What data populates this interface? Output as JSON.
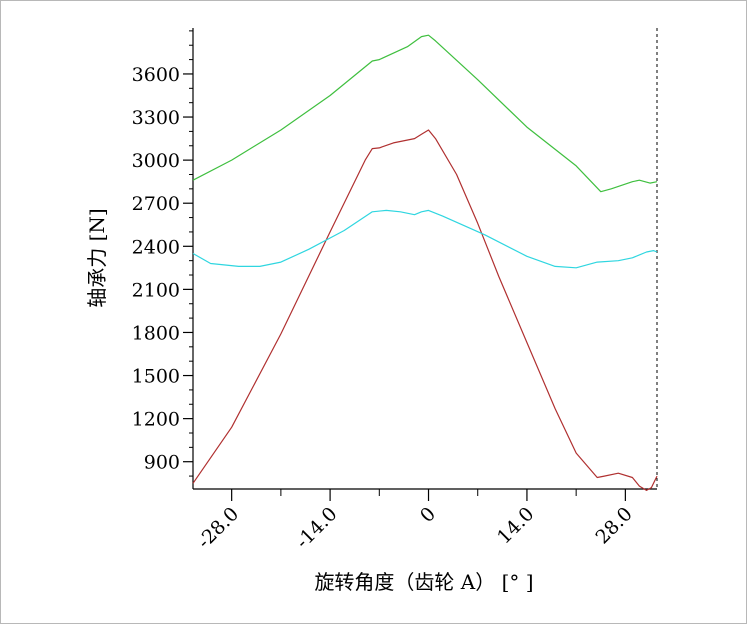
{
  "chart_data": {
    "type": "line",
    "title": "",
    "xlabel": "旋转角度（齿轮 A） [°  ]",
    "ylabel": "轴承力 [N]",
    "xlim": [
      -33.5,
      32.5
    ],
    "ylim": [
      710,
      3920
    ],
    "x_ticks": [
      -28.0,
      -14.0,
      0,
      14.0,
      28.0
    ],
    "x_tick_labels": [
      "-28.0",
      "-14.0",
      "0",
      "14.0",
      "28.0"
    ],
    "y_ticks": [
      900,
      1200,
      1500,
      1800,
      2100,
      2400,
      2700,
      3000,
      3300,
      3600
    ],
    "y_tick_labels": [
      "900",
      "1200",
      "1500",
      "1800",
      "2100",
      "2400",
      "2700",
      "3000",
      "3300",
      "3600"
    ],
    "grid": false,
    "legend": "none",
    "series": [
      {
        "color": "#3fbf3f",
        "points": [
          [
            -33.5,
            2860
          ],
          [
            -28,
            3000
          ],
          [
            -21,
            3210
          ],
          [
            -14,
            3450
          ],
          [
            -8,
            3690
          ],
          [
            -7,
            3700
          ],
          [
            -3,
            3790
          ],
          [
            -1,
            3860
          ],
          [
            0,
            3870
          ],
          [
            1,
            3830
          ],
          [
            7,
            3560
          ],
          [
            14,
            3230
          ],
          [
            21,
            2960
          ],
          [
            24.5,
            2780
          ],
          [
            26,
            2800
          ],
          [
            29,
            2850
          ],
          [
            30,
            2860
          ],
          [
            31.5,
            2840
          ],
          [
            32.5,
            2850
          ]
        ]
      },
      {
        "color": "#b03030",
        "points": [
          [
            -33.5,
            750
          ],
          [
            -28,
            1140
          ],
          [
            -21,
            1790
          ],
          [
            -14,
            2500
          ],
          [
            -9,
            3000
          ],
          [
            -8,
            3080
          ],
          [
            -7,
            3085
          ],
          [
            -5,
            3120
          ],
          [
            -2,
            3150
          ],
          [
            -1,
            3180
          ],
          [
            0,
            3210
          ],
          [
            1,
            3150
          ],
          [
            4,
            2900
          ],
          [
            7,
            2560
          ],
          [
            10,
            2190
          ],
          [
            14,
            1730
          ],
          [
            18,
            1270
          ],
          [
            21,
            960
          ],
          [
            24,
            790
          ],
          [
            25,
            800
          ],
          [
            27,
            820
          ],
          [
            29,
            790
          ],
          [
            30,
            730
          ],
          [
            31,
            700
          ],
          [
            31.7,
            720
          ],
          [
            32.5,
            800
          ]
        ]
      },
      {
        "color": "#2fd6e0",
        "points": [
          [
            -33.5,
            2350
          ],
          [
            -31,
            2280
          ],
          [
            -27,
            2260
          ],
          [
            -24,
            2260
          ],
          [
            -21,
            2290
          ],
          [
            -17,
            2380
          ],
          [
            -12,
            2510
          ],
          [
            -8,
            2640
          ],
          [
            -6,
            2650
          ],
          [
            -4,
            2640
          ],
          [
            -2,
            2620
          ],
          [
            -1,
            2640
          ],
          [
            0,
            2650
          ],
          [
            2,
            2610
          ],
          [
            8,
            2480
          ],
          [
            14,
            2330
          ],
          [
            18,
            2260
          ],
          [
            21,
            2250
          ],
          [
            24,
            2290
          ],
          [
            27,
            2300
          ],
          [
            29,
            2320
          ],
          [
            31,
            2360
          ],
          [
            32,
            2370
          ],
          [
            32.5,
            2360
          ]
        ]
      }
    ]
  }
}
